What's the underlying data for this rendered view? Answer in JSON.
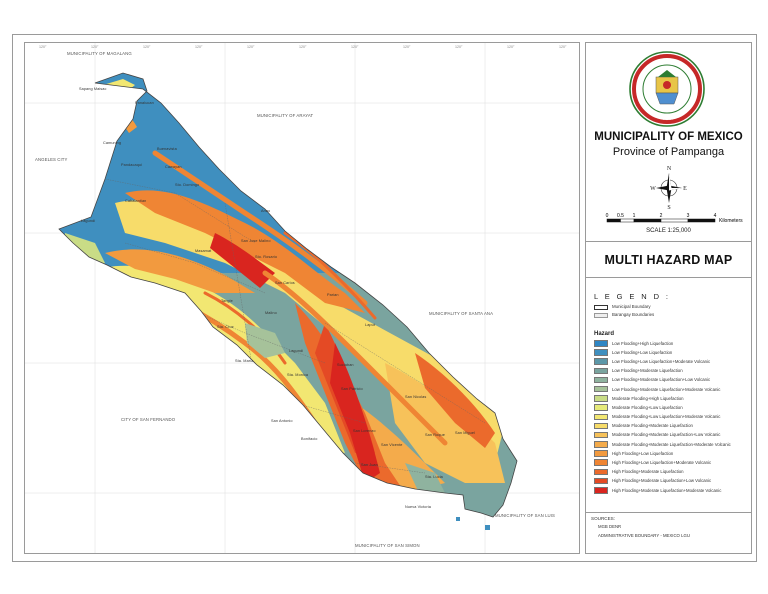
{
  "neighbors": {
    "north": "MUNICIPALITY OF MAGALANG",
    "northeast": "MUNICIPALITY OF ARAYAT",
    "west": "ANGELES CITY",
    "east": "MUNICIPALITY OF SANTA ANA",
    "southwest": "CITY OF SAN FERNANDO",
    "southeast": "MUNICIPALITY OF SAN LUIS",
    "south": "MUNICIPALITY OF SAN SIMON"
  },
  "barangays": [
    "Sapang Maisac",
    "Panalucan",
    "Camuning",
    "Buenavista",
    "Cawayan",
    "Pandacaqui",
    "Sto. Domingo",
    "Cabalantian",
    "Lagundi",
    "Anao",
    "San Jose Malino",
    "Sto. Rosario",
    "Masamat",
    "San Carlos",
    "Tangle",
    "Sta. Cruz",
    "Malino",
    "Sta. Maria",
    "Lagundi",
    "Suclaban",
    "Sta. Monica",
    "San Antonio",
    "San Patricio",
    "San Lorenzo",
    "Laput",
    "Parian",
    "San Nicolas",
    "San Roque",
    "San Vicente",
    "San Juan",
    "Sta. Lucia",
    "San Miguel",
    "Bonifacio",
    "Nueva Victoria"
  ],
  "seal": {
    "top_text": "BAYAN NG MEXICO",
    "bottom_text": "PAMPANGA"
  },
  "header": {
    "municipality": "MUNICIPALITY OF MEXICO",
    "province": "Province of Pampanga"
  },
  "compass": {
    "n": "N",
    "s": "S",
    "e": "E",
    "w": "W"
  },
  "scale": {
    "ticks": [
      "0",
      "0.5",
      "1",
      "2",
      "3",
      "4"
    ],
    "tick_values_km": [
      0,
      0.5,
      1,
      2,
      3,
      4
    ],
    "unit": "Kilometers",
    "ratio": "SCALE  1:25,000"
  },
  "map_title": "MULTI HAZARD MAP",
  "legend": {
    "heading": "L E G E N D :",
    "boundaries": [
      {
        "label": "Municipal Boundary",
        "style": "outline"
      },
      {
        "label": "Barangay Boundaries",
        "style": "fill-light"
      }
    ],
    "hazard_heading": "Hazard",
    "hazards": [
      {
        "label": "Low Flooding+High Liquefaction",
        "color": "#2f86c4"
      },
      {
        "label": "Low Flooding+Low Liquefaction",
        "color": "#3f8fbf"
      },
      {
        "label": "Low Flooding+Low Liquefaction+Moderate Volcanic",
        "color": "#5c97a8"
      },
      {
        "label": "Low Flooding+Moderate Liquefaction",
        "color": "#7aa49f"
      },
      {
        "label": "Low Flooding+Moderate Liquefaction+Low Volcanic",
        "color": "#8fb39f"
      },
      {
        "label": "Low Flooding+Moderate Liquefaction+Moderate Volcanic",
        "color": "#a6c29a"
      },
      {
        "label": "Moderate Flooding+High Liquefaction",
        "color": "#c9dc86"
      },
      {
        "label": "Moderate Flooding+Low Liquefaction",
        "color": "#e6ea7a"
      },
      {
        "label": "Moderate Flooding+Low Liquefaction+Moderate Volcanic",
        "color": "#f2e772"
      },
      {
        "label": "Moderate Flooding+Moderate Liquefaction",
        "color": "#f7dc6a"
      },
      {
        "label": "Moderate Flooding+Moderate Liquefaction+Low Volcanic",
        "color": "#f7c25a"
      },
      {
        "label": "Moderate Flooding+Moderate Liquefaction+Moderate Volcanic",
        "color": "#f4ab4b"
      },
      {
        "label": "High Flooding+Low Liquefaction",
        "color": "#f29a3f"
      },
      {
        "label": "High Flooding+Low Liquefaction+Moderate Volcanic",
        "color": "#ef8534"
      },
      {
        "label": "High Flooding+Moderate Liquefaction",
        "color": "#eb6a2c"
      },
      {
        "label": "High Flooding+Moderate Liquefaction+Low Volcanic",
        "color": "#e44a25"
      },
      {
        "label": "High Flooding+Moderate Liquefaction+Moderate Volcanic",
        "color": "#d9251f"
      }
    ]
  },
  "sources": {
    "heading": "SOURCES:",
    "lines": [
      "MGB DENR",
      "ADMINISTRATIVE BOUNDARY - MEXICO LGU"
    ]
  },
  "graticule_ticks": [
    "120°",
    "120°",
    "120°",
    "120°",
    "120°",
    "120°",
    "120°",
    "120°",
    "120°",
    "120°",
    "120°"
  ]
}
